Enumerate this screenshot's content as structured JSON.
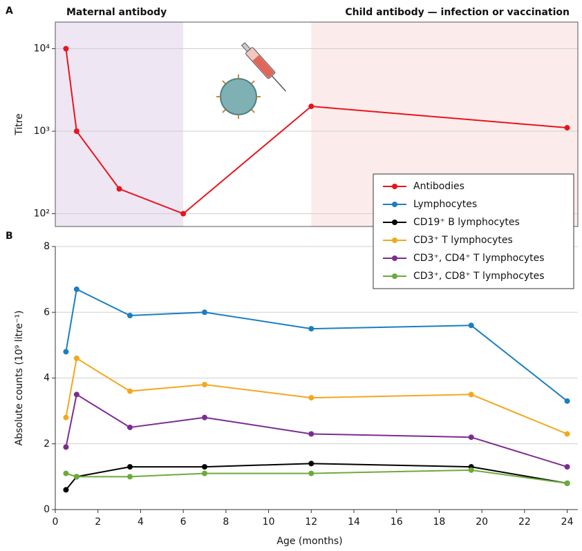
{
  "chart_data": [
    {
      "type": "line",
      "panel": "A",
      "ylabel": "Titre",
      "yscale": "log",
      "xlim": [
        0,
        24.5
      ],
      "ylim": [
        70,
        21000
      ],
      "yticks": [
        {
          "value": 100,
          "label": "10²"
        },
        {
          "value": 1000,
          "label": "10³"
        },
        {
          "value": 10000,
          "label": "10⁴"
        }
      ],
      "grid": true,
      "regions": [
        {
          "label": "Maternal antibody",
          "range": [
            0,
            6
          ],
          "color": "#efe6f4"
        },
        {
          "label": "Child antibody — infection or vaccination",
          "range": [
            12,
            24.5
          ],
          "color": "#fbeceb"
        }
      ],
      "x": [
        0.5,
        1,
        3,
        6,
        12,
        24
      ],
      "series": [
        {
          "name": "Antibodies",
          "color": "#e8141b",
          "values": [
            10000,
            1000,
            200,
            100,
            2000,
            1100
          ]
        }
      ]
    },
    {
      "type": "line",
      "panel": "B",
      "ylabel": "Absolute counts (10⁹ litre⁻¹)",
      "xlabel": "Age (months)",
      "xlim": [
        0,
        24.5
      ],
      "ylim": [
        0,
        8
      ],
      "xticks": [
        0,
        2,
        4,
        6,
        8,
        10,
        12,
        14,
        16,
        18,
        20,
        22,
        24
      ],
      "yticks": [
        0,
        2,
        4,
        6,
        8
      ],
      "grid": true,
      "x": [
        0.5,
        1,
        3.5,
        7,
        12,
        19.5,
        24
      ],
      "series": [
        {
          "name": "Lymphocytes",
          "color": "#1a7ec2",
          "values": [
            4.8,
            6.7,
            5.9,
            6.0,
            5.5,
            5.6,
            3.3
          ]
        },
        {
          "name": "CD19⁺ B lymphocytes",
          "color": "#000000",
          "values": [
            0.6,
            1.0,
            1.3,
            1.3,
            1.4,
            1.3,
            0.8
          ]
        },
        {
          "name": "CD3⁺ T lymphocytes",
          "color": "#f3a81c",
          "values": [
            2.8,
            4.6,
            3.6,
            3.8,
            3.4,
            3.5,
            2.3
          ]
        },
        {
          "name": "CD3⁺, CD4⁺ T lymphocytes",
          "color": "#7d2b91",
          "values": [
            1.9,
            3.5,
            2.5,
            2.8,
            2.3,
            2.2,
            1.3
          ]
        },
        {
          "name": "CD3⁺, CD8⁺ T lymphocytes",
          "color": "#6aab3a",
          "values": [
            1.1,
            1.0,
            1.0,
            1.1,
            1.1,
            1.2,
            0.8
          ]
        }
      ]
    }
  ]
}
